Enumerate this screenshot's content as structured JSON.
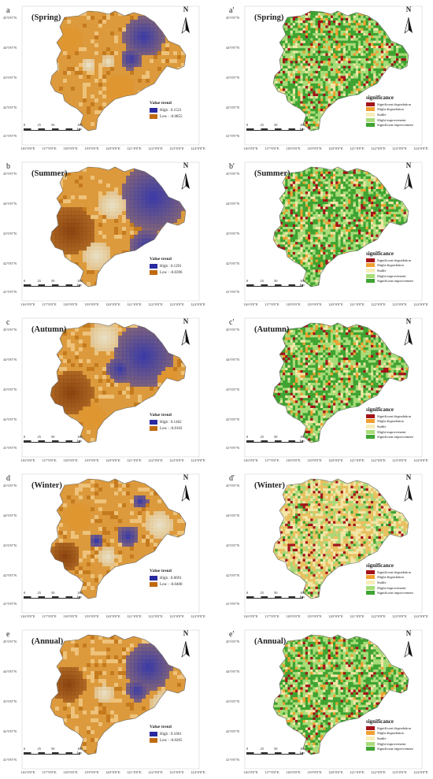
{
  "panels": [
    {
      "label": "a",
      "title": "(Spring)",
      "type": "trend",
      "high": "High : 0.1521",
      "low": "Low : -0.0855"
    },
    {
      "label": "a'",
      "title": "(Spring)",
      "type": "sig"
    },
    {
      "label": "b",
      "title": "(Summer)",
      "type": "trend",
      "high": "High : 0.1291",
      "low": "Low : -0.0396"
    },
    {
      "label": "b'",
      "title": "(Summer)",
      "type": "sig"
    },
    {
      "label": "c",
      "title": "(Autumn)",
      "type": "trend",
      "high": "High : 0.1462",
      "low": "Low : -0.0102"
    },
    {
      "label": "c'",
      "title": "(Autumn)",
      "type": "sig"
    },
    {
      "label": "d",
      "title": "(Winter)",
      "type": "trend",
      "high": "High : 0.0691",
      "low": "Low : -0.0400"
    },
    {
      "label": "d'",
      "title": "(Winter)",
      "type": "sig"
    },
    {
      "label": "e",
      "title": "(Annual)",
      "type": "trend",
      "high": "High : 0.1061",
      "low": "Low : -0.0205"
    },
    {
      "label": "e'",
      "title": "(Annual)",
      "type": "sig"
    }
  ],
  "lat_labels": [
    "45°0'0\"N",
    "44°0'0\"N",
    "43°0'0\"N",
    "42°0'0\"N",
    "41°0'0\"N"
  ],
  "lon_labels": [
    "116°0'0\"E",
    "117°0'0\"E",
    "118°0'0\"E",
    "119°0'0\"E",
    "120°0'0\"E",
    "121°0'0\"E",
    "122°0'0\"E",
    "123°0'0\"E",
    "124°0'0\"E"
  ],
  "north_label": "N",
  "trend_legend_title": "Value trend",
  "sig_legend_title": "significance",
  "sig_legend_items": [
    {
      "label": "Significant degradation",
      "color": "#a3121a"
    },
    {
      "label": "Slight degradation",
      "color": "#f0a030"
    },
    {
      "label": "Stable",
      "color": "#f7edb8"
    },
    {
      "label": "Slight improvement",
      "color": "#a8dc78"
    },
    {
      "label": "Significant improvement",
      "color": "#3fa332"
    }
  ],
  "scale_labels": [
    "0",
    "25",
    "50",
    "100 km"
  ],
  "colors": {
    "trend_high": "#2a2aa0",
    "trend_low": "#c06a10"
  }
}
